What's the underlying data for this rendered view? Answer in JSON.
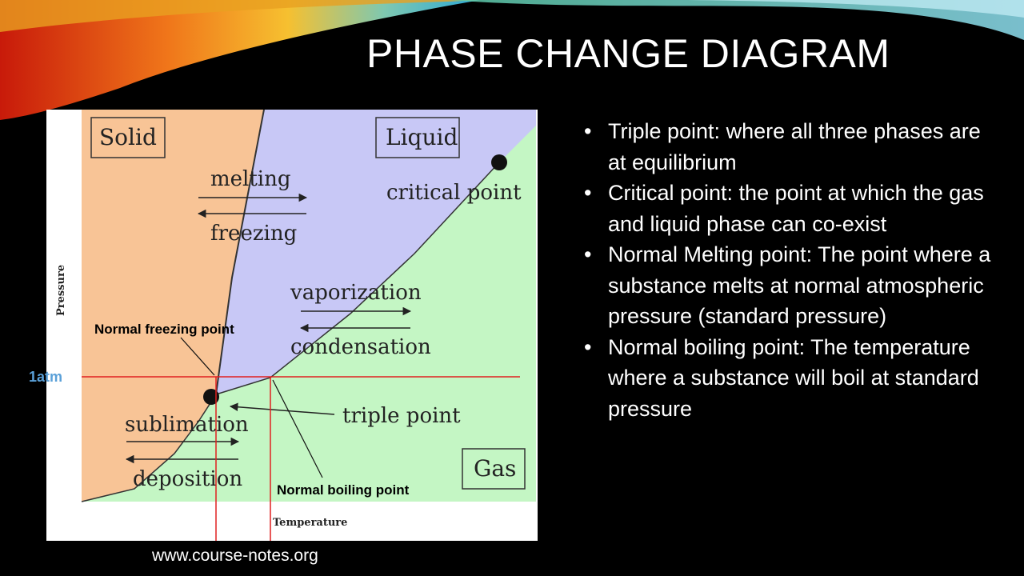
{
  "slide": {
    "title": "PHASE CHANGE DIAGRAM",
    "website": "www.course-notes.org",
    "pressure_marker": "1atm"
  },
  "diagram": {
    "regions": {
      "solid": "Solid",
      "liquid": "Liquid",
      "gas": "Gas"
    },
    "processes": {
      "melting": "melting",
      "freezing": "freezing",
      "vaporization": "vaporization",
      "condensation": "condensation",
      "sublimation": "sublimation",
      "deposition": "deposition"
    },
    "points": {
      "critical": "critical point",
      "triple": "triple point"
    },
    "axes": {
      "y": "Pressure",
      "x": "Temperature"
    },
    "annotations": {
      "freezing": "Normal freezing point",
      "boiling": "Normal boiling point"
    },
    "colors": {
      "solid": "#f8c496",
      "liquid": "#c8c8f6",
      "gas": "#c4f6c4",
      "reference_lines": "#e02020"
    }
  },
  "bullets": [
    "Triple point: where all three phases are at equilibrium",
    "Critical point: the point at which the gas and liquid phase can co-exist",
    "Normal Melting point: The point where a substance melts at normal atmospheric pressure (standard pressure)",
    "Normal boiling point: The temperature where a substance will boil at standard pressure"
  ]
}
